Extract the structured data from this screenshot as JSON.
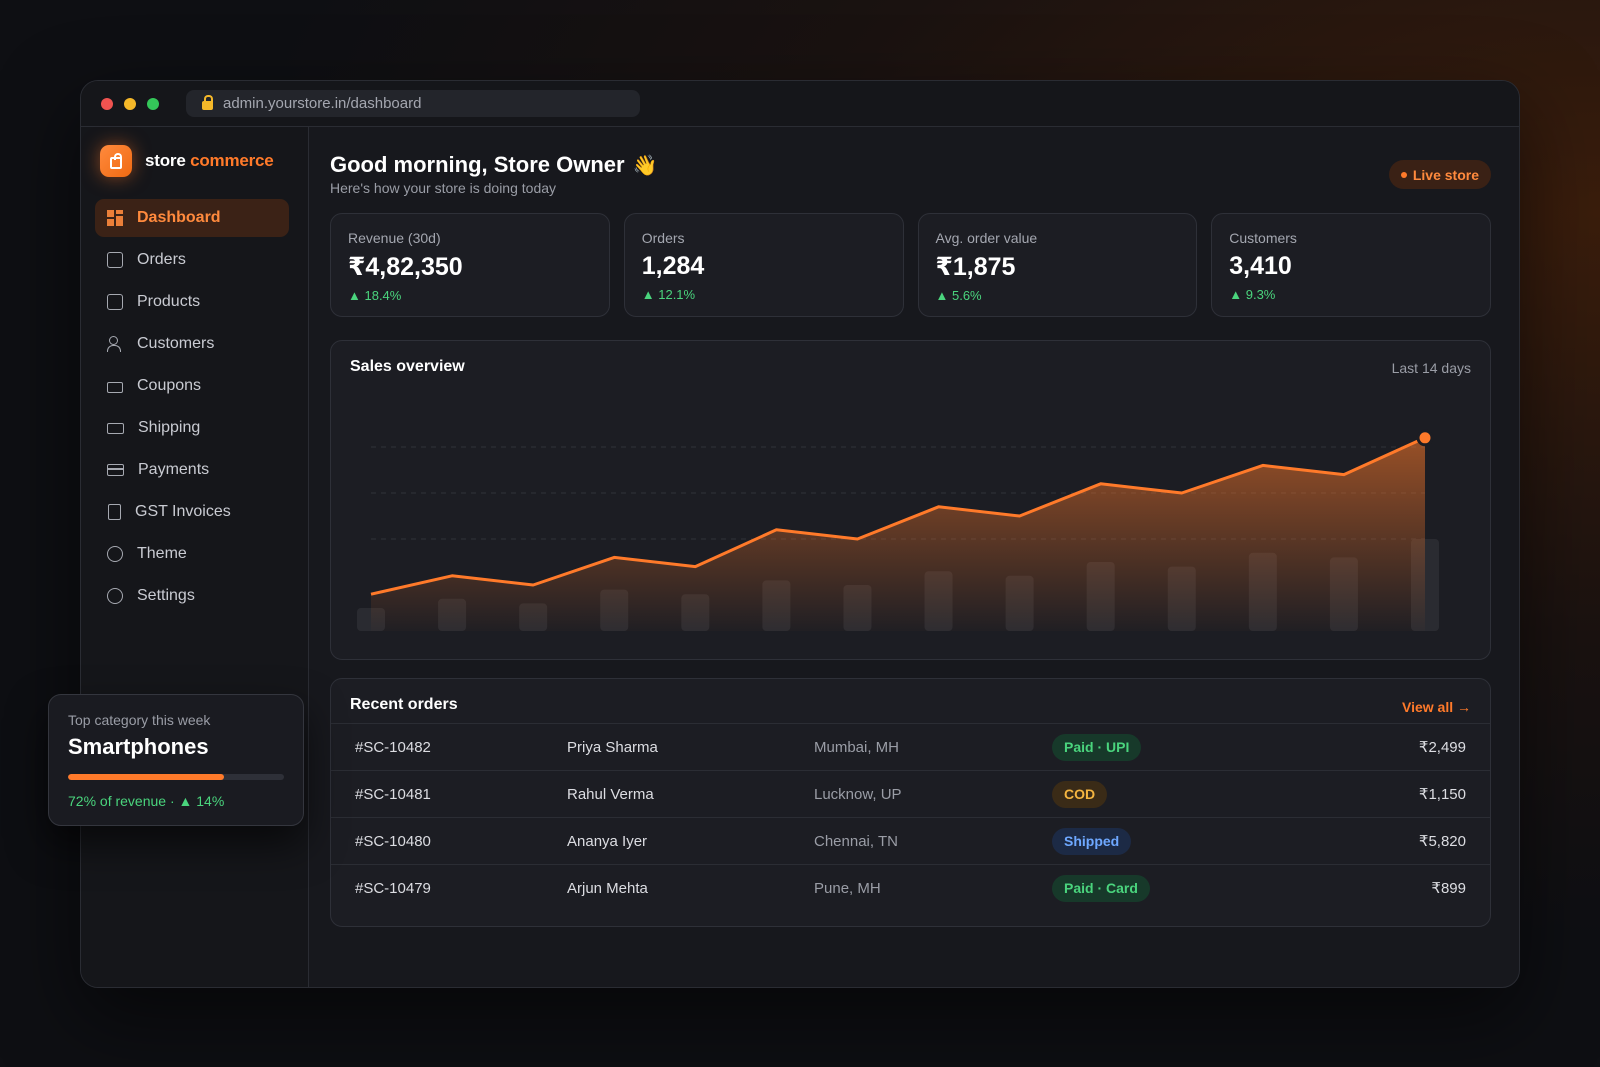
{
  "browser": {
    "url": "admin.yourstore.in/dashboard"
  },
  "brand": {
    "name_a": "store",
    "name_b": "commerce"
  },
  "sidebar": {
    "items": [
      {
        "label": "Dashboard",
        "icon": "dashboard-icon",
        "active": true
      },
      {
        "label": "Orders",
        "icon": "orders-icon"
      },
      {
        "label": "Products",
        "icon": "products-icon"
      },
      {
        "label": "Customers",
        "icon": "customers-icon"
      },
      {
        "label": "Coupons",
        "icon": "coupons-icon"
      },
      {
        "label": "Shipping",
        "icon": "shipping-icon"
      },
      {
        "label": "Payments",
        "icon": "payments-icon"
      },
      {
        "label": "GST Invoices",
        "icon": "invoice-icon"
      },
      {
        "label": "Theme",
        "icon": "theme-icon"
      },
      {
        "label": "Settings",
        "icon": "settings-icon"
      }
    ]
  },
  "header": {
    "greeting": "Good morning, Store Owner",
    "wave": "👋",
    "subtitle": "Here's how your store is doing today",
    "live_label": "Live store"
  },
  "stats": [
    {
      "label": "Revenue (30d)",
      "value": "₹4,82,350",
      "delta": "▲ 18.4%"
    },
    {
      "label": "Orders",
      "value": "1,284",
      "delta": "▲ 12.1%"
    },
    {
      "label": "Avg. order value",
      "value": "₹1,875",
      "delta": "▲ 5.6%"
    },
    {
      "label": "Customers",
      "value": "3,410",
      "delta": "▲ 9.3%"
    }
  ],
  "sales": {
    "title": "Sales overview",
    "range": "Last 14 days"
  },
  "chart_data": {
    "type": "line",
    "x": [
      1,
      2,
      3,
      4,
      5,
      6,
      7,
      8,
      9,
      10,
      11,
      12,
      13,
      14
    ],
    "series": [
      {
        "values": [
          8,
          12,
          10,
          16,
          14,
          22,
          20,
          27,
          25,
          32,
          30,
          36,
          34,
          42
        ]
      },
      {
        "values": [
          5,
          7,
          6,
          9,
          8,
          11,
          10,
          13,
          12,
          15,
          14,
          17,
          16,
          20
        ]
      }
    ],
    "ylim": [
      0,
      50
    ],
    "grid": true,
    "accent": "#ff7a2a"
  },
  "orders": {
    "title": "Recent orders",
    "view_all": "View all →",
    "rows": [
      {
        "id": "#SC-10482",
        "name": "Priya Sharma",
        "city": "Mumbai, MH",
        "status": "Paid · UPI",
        "tone": "green",
        "amount": "₹2,499"
      },
      {
        "id": "#SC-10481",
        "name": "Rahul Verma",
        "city": "Lucknow, UP",
        "status": "COD",
        "tone": "amber",
        "amount": "₹1,150"
      },
      {
        "id": "#SC-10480",
        "name": "Ananya Iyer",
        "city": "Chennai, TN",
        "status": "Shipped",
        "tone": "blue",
        "amount": "₹5,820"
      },
      {
        "id": "#SC-10479",
        "name": "Arjun Mehta",
        "city": "Pune, MH",
        "status": "Paid · Card",
        "tone": "green",
        "amount": "₹899"
      }
    ]
  },
  "top_category": {
    "label": "Top category this week",
    "title": "Smartphones",
    "share": 0.72,
    "note": "72% of revenue · ▲ 14%"
  }
}
